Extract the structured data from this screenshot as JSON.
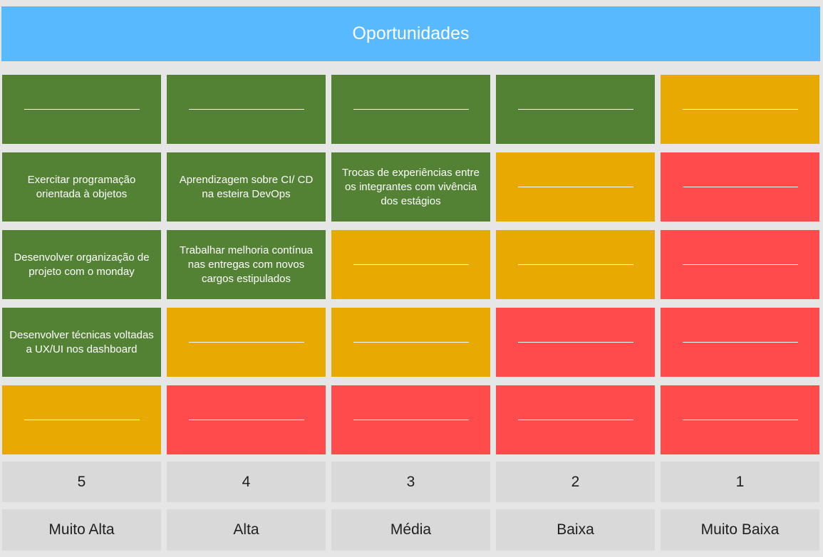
{
  "title": "Oportunidades",
  "colors": {
    "green": "#548235",
    "yellow": "#e8a900",
    "red": "#ff4b4b",
    "header": "#59b9ff",
    "label_bg": "#d9d9d9"
  },
  "rows": [
    [
      {
        "color": "green",
        "text": ""
      },
      {
        "color": "green",
        "text": ""
      },
      {
        "color": "green",
        "text": ""
      },
      {
        "color": "green",
        "text": ""
      },
      {
        "color": "yellow",
        "text": ""
      }
    ],
    [
      {
        "color": "green",
        "text": "Exercitar programação orientada à objetos"
      },
      {
        "color": "green",
        "text": "Aprendizagem sobre CI/ CD na esteira DevOps"
      },
      {
        "color": "green",
        "text": "Trocas de experiências entre os integrantes com vivência dos estágios"
      },
      {
        "color": "yellow",
        "text": ""
      },
      {
        "color": "red",
        "text": ""
      }
    ],
    [
      {
        "color": "green",
        "text": "Desenvolver organização de projeto com o monday"
      },
      {
        "color": "green",
        "text": "Trabalhar melhoria contínua nas entregas com novos cargos estipulados"
      },
      {
        "color": "yellow",
        "text": ""
      },
      {
        "color": "yellow",
        "text": ""
      },
      {
        "color": "red",
        "text": ""
      }
    ],
    [
      {
        "color": "green",
        "text": "Desenvolver técnicas voltadas a UX/UI nos dashboard"
      },
      {
        "color": "yellow",
        "text": ""
      },
      {
        "color": "yellow",
        "text": ""
      },
      {
        "color": "red",
        "text": ""
      },
      {
        "color": "red",
        "text": ""
      }
    ],
    [
      {
        "color": "yellow",
        "text": ""
      },
      {
        "color": "red",
        "text": ""
      },
      {
        "color": "red",
        "text": ""
      },
      {
        "color": "red",
        "text": ""
      },
      {
        "color": "red",
        "text": ""
      }
    ]
  ],
  "scores": [
    "5",
    "4",
    "3",
    "2",
    "1"
  ],
  "levels": [
    "Muito Alta",
    "Alta",
    "Média",
    "Baixa",
    "Muito Baixa"
  ]
}
